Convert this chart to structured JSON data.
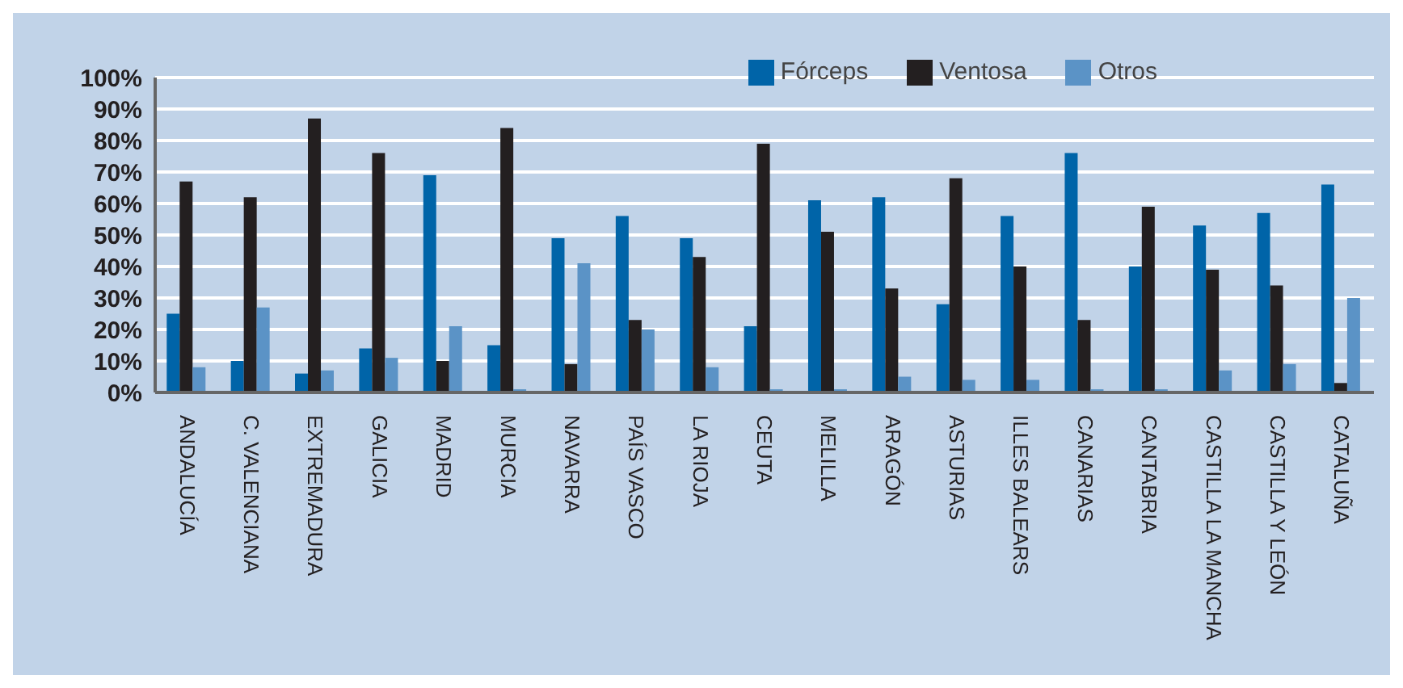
{
  "chart_data": {
    "type": "bar",
    "categories": [
      "ANDALUCÍA",
      "C. VALENCIANA",
      "EXTREMADURA",
      "GALICIA",
      "MADRID",
      "MURCIA",
      "NAVARRA",
      "PAÍS VASCO",
      "LA RIOJA",
      "CEUTA",
      "MELILLA",
      "ARAGÓN",
      "ASTURIAS",
      "ILLES BALEARS",
      "CANARIAS",
      "CANTABRIA",
      "CASTILLA LA MANCHA",
      "CASTILLA Y LEÓN",
      "CATALUÑA"
    ],
    "series": [
      {
        "name": "Fórceps",
        "color": "#0064a8",
        "values": [
          25,
          10,
          6,
          14,
          69,
          15,
          49,
          56,
          49,
          21,
          61,
          62,
          28,
          56,
          76,
          40,
          53,
          57,
          66
        ]
      },
      {
        "name": "Ventosa",
        "color": "#231f20",
        "values": [
          67,
          62,
          87,
          76,
          10,
          84,
          9,
          23,
          43,
          79,
          51,
          33,
          68,
          40,
          23,
          59,
          39,
          34,
          3
        ]
      },
      {
        "name": "Otros",
        "color": "#5b93c6",
        "values": [
          8,
          27,
          7,
          11,
          21,
          1,
          41,
          20,
          8,
          1,
          1,
          5,
          4,
          4,
          1,
          1,
          7,
          9,
          30
        ]
      }
    ],
    "ylim": [
      0,
      100
    ],
    "yticks": [
      {
        "value": 0,
        "label": "0%"
      },
      {
        "value": 10,
        "label": "10%"
      },
      {
        "value": 20,
        "label": "20%"
      },
      {
        "value": 30,
        "label": "30%"
      },
      {
        "value": 40,
        "label": "40%"
      },
      {
        "value": 50,
        "label": "50%"
      },
      {
        "value": 60,
        "label": "60%"
      },
      {
        "value": 70,
        "label": "70%"
      },
      {
        "value": 80,
        "label": "80%"
      },
      {
        "value": 90,
        "label": "90%"
      },
      {
        "value": 100,
        "label": "100%"
      }
    ],
    "grid": "y",
    "legend": "top right"
  }
}
